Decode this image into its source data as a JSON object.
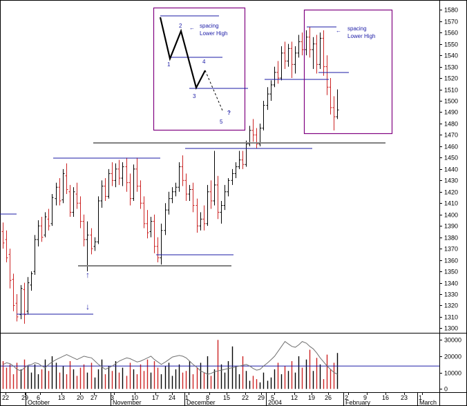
{
  "chart_data": [
    {
      "type": "ohlc",
      "title": "",
      "price_axis": {
        "ticks": [
          1300,
          1310,
          1320,
          1330,
          1340,
          1350,
          1360,
          1370,
          1380,
          1390,
          1400,
          1410,
          1420,
          1430,
          1440,
          1450,
          1460,
          1470,
          1480,
          1490,
          1500,
          1510,
          1520,
          1530,
          1540,
          1550,
          1560,
          1570,
          1580
        ],
        "ylim": [
          1296,
          1585
        ]
      },
      "date_axis": {
        "day_ticks": [
          "22",
          "29",
          "6",
          "13",
          "20",
          "27",
          "3",
          "10",
          "17",
          "24",
          "1",
          "8",
          "15",
          "22",
          "29",
          "5",
          "12",
          "19",
          "26",
          "2",
          "9",
          "16",
          "23",
          "1"
        ],
        "month_labels": [
          "October",
          "November",
          "December",
          "2004",
          "February",
          "March"
        ]
      },
      "colors": {
        "up": "#000000",
        "down": "#cc2222",
        "trendline": "#1a1aa6",
        "support": "#808080",
        "box": "#800080"
      },
      "bars": [
        {
          "o": 1385,
          "h": 1393,
          "c": 1375,
          "l": 1370
        },
        {
          "o": 1378,
          "h": 1386,
          "c": 1362,
          "l": 1358
        },
        {
          "o": 1365,
          "h": 1370,
          "c": 1342,
          "l": 1335
        },
        {
          "o": 1343,
          "h": 1348,
          "c": 1320,
          "l": 1315
        },
        {
          "o": 1322,
          "h": 1330,
          "c": 1310,
          "l": 1306
        },
        {
          "o": 1312,
          "h": 1338,
          "c": 1335,
          "l": 1308
        },
        {
          "o": 1334,
          "h": 1340,
          "c": 1312,
          "l": 1304
        },
        {
          "o": 1315,
          "h": 1345,
          "c": 1340,
          "l": 1312
        },
        {
          "o": 1338,
          "h": 1350,
          "c": 1348,
          "l": 1333
        },
        {
          "o": 1350,
          "h": 1382,
          "c": 1378,
          "l": 1347
        },
        {
          "o": 1378,
          "h": 1395,
          "c": 1390,
          "l": 1372
        },
        {
          "o": 1390,
          "h": 1398,
          "c": 1380,
          "l": 1376
        },
        {
          "o": 1382,
          "h": 1402,
          "c": 1398,
          "l": 1380
        },
        {
          "o": 1396,
          "h": 1405,
          "c": 1390,
          "l": 1386
        },
        {
          "o": 1392,
          "h": 1418,
          "c": 1415,
          "l": 1390
        },
        {
          "o": 1414,
          "h": 1428,
          "c": 1424,
          "l": 1408
        },
        {
          "o": 1424,
          "h": 1432,
          "c": 1412,
          "l": 1408
        },
        {
          "o": 1413,
          "h": 1440,
          "c": 1436,
          "l": 1410
        },
        {
          "o": 1434,
          "h": 1445,
          "c": 1422,
          "l": 1418
        },
        {
          "o": 1420,
          "h": 1426,
          "c": 1402,
          "l": 1398
        },
        {
          "o": 1402,
          "h": 1424,
          "c": 1420,
          "l": 1398
        },
        {
          "o": 1418,
          "h": 1428,
          "c": 1410,
          "l": 1405
        },
        {
          "o": 1410,
          "h": 1416,
          "c": 1394,
          "l": 1388
        },
        {
          "o": 1394,
          "h": 1400,
          "c": 1378,
          "l": 1372
        },
        {
          "o": 1378,
          "h": 1394,
          "c": 1382,
          "l": 1350
        },
        {
          "o": 1382,
          "h": 1388,
          "c": 1370,
          "l": 1365
        },
        {
          "o": 1372,
          "h": 1380,
          "c": 1376,
          "l": 1368
        },
        {
          "o": 1376,
          "h": 1416,
          "c": 1412,
          "l": 1374
        },
        {
          "o": 1412,
          "h": 1430,
          "c": 1425,
          "l": 1406
        },
        {
          "o": 1425,
          "h": 1432,
          "c": 1416,
          "l": 1412
        },
        {
          "o": 1416,
          "h": 1440,
          "c": 1436,
          "l": 1414
        },
        {
          "o": 1436,
          "h": 1446,
          "c": 1430,
          "l": 1425
        },
        {
          "o": 1430,
          "h": 1445,
          "c": 1440,
          "l": 1424
        },
        {
          "o": 1440,
          "h": 1448,
          "c": 1432,
          "l": 1426
        },
        {
          "o": 1432,
          "h": 1446,
          "c": 1442,
          "l": 1425
        },
        {
          "o": 1442,
          "h": 1450,
          "c": 1428,
          "l": 1420
        },
        {
          "o": 1428,
          "h": 1436,
          "c": 1414,
          "l": 1408
        },
        {
          "o": 1414,
          "h": 1444,
          "c": 1440,
          "l": 1412
        },
        {
          "o": 1440,
          "h": 1450,
          "c": 1425,
          "l": 1420
        },
        {
          "o": 1425,
          "h": 1430,
          "c": 1410,
          "l": 1405
        },
        {
          "o": 1410,
          "h": 1416,
          "c": 1392,
          "l": 1388
        },
        {
          "o": 1392,
          "h": 1404,
          "c": 1384,
          "l": 1379
        },
        {
          "o": 1385,
          "h": 1398,
          "c": 1394,
          "l": 1380
        },
        {
          "o": 1394,
          "h": 1400,
          "c": 1372,
          "l": 1366
        },
        {
          "o": 1372,
          "h": 1380,
          "c": 1362,
          "l": 1358
        },
        {
          "o": 1362,
          "h": 1392,
          "c": 1386,
          "l": 1356
        },
        {
          "o": 1386,
          "h": 1410,
          "c": 1404,
          "l": 1382
        },
        {
          "o": 1404,
          "h": 1420,
          "c": 1414,
          "l": 1400
        },
        {
          "o": 1414,
          "h": 1424,
          "c": 1420,
          "l": 1410
        },
        {
          "o": 1420,
          "h": 1428,
          "c": 1424,
          "l": 1416
        },
        {
          "o": 1424,
          "h": 1446,
          "c": 1442,
          "l": 1420
        },
        {
          "o": 1442,
          "h": 1452,
          "c": 1430,
          "l": 1425
        },
        {
          "o": 1430,
          "h": 1436,
          "c": 1418,
          "l": 1412
        },
        {
          "o": 1418,
          "h": 1426,
          "c": 1422,
          "l": 1412
        },
        {
          "o": 1422,
          "h": 1428,
          "c": 1408,
          "l": 1402
        },
        {
          "o": 1408,
          "h": 1414,
          "c": 1390,
          "l": 1384
        },
        {
          "o": 1390,
          "h": 1402,
          "c": 1396,
          "l": 1386
        },
        {
          "o": 1396,
          "h": 1408,
          "c": 1392,
          "l": 1386
        },
        {
          "o": 1392,
          "h": 1426,
          "c": 1420,
          "l": 1390
        },
        {
          "o": 1420,
          "h": 1430,
          "c": 1412,
          "l": 1405
        },
        {
          "o": 1412,
          "h": 1456,
          "c": 1426,
          "l": 1408
        },
        {
          "o": 1426,
          "h": 1434,
          "c": 1402,
          "l": 1396
        },
        {
          "o": 1402,
          "h": 1412,
          "c": 1408,
          "l": 1392
        },
        {
          "o": 1408,
          "h": 1426,
          "c": 1420,
          "l": 1404
        },
        {
          "o": 1420,
          "h": 1432,
          "c": 1430,
          "l": 1416
        },
        {
          "o": 1430,
          "h": 1440,
          "c": 1436,
          "l": 1426
        },
        {
          "o": 1436,
          "h": 1446,
          "c": 1442,
          "l": 1432
        },
        {
          "o": 1442,
          "h": 1456,
          "c": 1448,
          "l": 1440
        },
        {
          "o": 1448,
          "h": 1456,
          "c": 1444,
          "l": 1440
        },
        {
          "o": 1444,
          "h": 1465,
          "c": 1462,
          "l": 1442
        },
        {
          "o": 1462,
          "h": 1478,
          "c": 1474,
          "l": 1460
        },
        {
          "o": 1474,
          "h": 1484,
          "c": 1470,
          "l": 1464
        },
        {
          "o": 1470,
          "h": 1476,
          "c": 1462,
          "l": 1458
        },
        {
          "o": 1462,
          "h": 1480,
          "c": 1476,
          "l": 1460
        },
        {
          "o": 1476,
          "h": 1500,
          "c": 1496,
          "l": 1474
        },
        {
          "o": 1496,
          "h": 1512,
          "c": 1506,
          "l": 1492
        },
        {
          "o": 1506,
          "h": 1518,
          "c": 1514,
          "l": 1500
        },
        {
          "o": 1514,
          "h": 1530,
          "c": 1525,
          "l": 1512
        },
        {
          "o": 1525,
          "h": 1535,
          "c": 1520,
          "l": 1515
        },
        {
          "o": 1520,
          "h": 1548,
          "c": 1542,
          "l": 1518
        },
        {
          "o": 1542,
          "h": 1552,
          "c": 1535,
          "l": 1528
        },
        {
          "o": 1535,
          "h": 1550,
          "c": 1546,
          "l": 1530
        },
        {
          "o": 1546,
          "h": 1552,
          "c": 1532,
          "l": 1520
        },
        {
          "o": 1532,
          "h": 1548,
          "c": 1542,
          "l": 1524
        },
        {
          "o": 1542,
          "h": 1558,
          "c": 1552,
          "l": 1538
        },
        {
          "o": 1552,
          "h": 1560,
          "c": 1545,
          "l": 1540
        },
        {
          "o": 1545,
          "h": 1562,
          "c": 1556,
          "l": 1540
        },
        {
          "o": 1556,
          "h": 1565,
          "c": 1545,
          "l": 1538
        },
        {
          "o": 1545,
          "h": 1556,
          "c": 1550,
          "l": 1528
        },
        {
          "o": 1550,
          "h": 1558,
          "c": 1532,
          "l": 1524
        },
        {
          "o": 1532,
          "h": 1560,
          "c": 1555,
          "l": 1528
        },
        {
          "o": 1555,
          "h": 1562,
          "c": 1530,
          "l": 1522
        },
        {
          "o": 1530,
          "h": 1540,
          "c": 1512,
          "l": 1505
        },
        {
          "o": 1512,
          "h": 1520,
          "c": 1494,
          "l": 1488
        },
        {
          "o": 1494,
          "h": 1504,
          "c": 1486,
          "l": 1474
        },
        {
          "o": 1486,
          "h": 1510,
          "c": 1492,
          "l": 1484
        }
      ],
      "annotations": {
        "diagram_labels": [
          "1",
          "2",
          "3",
          "4",
          "5",
          "?"
        ],
        "text_left": "spacing\nLower High",
        "text_right": "spacing\nLower High",
        "arrow_glyph_left": "←",
        "arrow_glyph_right": "←",
        "arrow_up": "↑",
        "arrow_down": "↓"
      }
    },
    {
      "type": "bar",
      "title": "",
      "volume_axis": {
        "ticks": [
          0,
          10000,
          20000,
          30000
        ],
        "ylim": [
          -2000,
          33500
        ]
      },
      "reference_line": 14000,
      "volume": [
        17000,
        13000,
        15000,
        9000,
        16000,
        12000,
        18000,
        14000,
        10000,
        15000,
        9000,
        12000,
        18000,
        11000,
        20000,
        16000,
        10000,
        14000,
        9000,
        17000,
        12000,
        8000,
        13000,
        15000,
        10000,
        16000,
        7000,
        12000,
        18000,
        9000,
        14000,
        11000,
        17000,
        10000,
        13000,
        8000,
        16000,
        12000,
        9000,
        15000,
        11000,
        18000,
        10000,
        17000,
        13000,
        9000,
        14000,
        16000,
        8000,
        12000,
        15000,
        10000,
        11000,
        17000,
        9000,
        13000,
        16000,
        10000,
        20000,
        8000,
        12000,
        30000,
        15000,
        10000,
        17000,
        26000,
        14000,
        9000,
        20000,
        11000,
        5000,
        8000,
        6000,
        4000,
        10000,
        5000,
        7000,
        12000,
        16000,
        9000,
        14000,
        11000,
        17000,
        10000,
        20000,
        13000,
        18000,
        24000,
        11000,
        19000,
        15000,
        6000,
        21000,
        12000,
        16000,
        22000
      ],
      "oscillator": [
        15000,
        16000,
        15500,
        14000,
        12000,
        11000,
        13000,
        14500,
        15000,
        16000,
        15500,
        14000,
        13000,
        15000,
        16500,
        18000,
        19000,
        20000,
        21000,
        20000,
        19000,
        18000,
        19000,
        20000,
        19500,
        19000,
        17000,
        15000,
        13500,
        12000,
        13000,
        14000,
        15500,
        17000,
        18000,
        19000,
        18500,
        17500,
        16500,
        17000,
        18000,
        19000,
        20000,
        18000,
        16500,
        15000,
        16500,
        18000,
        19500,
        20000,
        20500,
        20000,
        19000,
        17000,
        15000,
        13000,
        11000,
        10000,
        9000,
        9500,
        10500,
        11000,
        11500,
        12000,
        12500,
        13000,
        13500,
        14000,
        14500,
        15000,
        14000,
        12500,
        11500,
        12000,
        14000,
        16000,
        18000,
        20000,
        23000,
        26000,
        29000,
        27500,
        26000,
        25500,
        27000,
        29000,
        28000,
        26000,
        24500,
        22000,
        19000,
        16500,
        14000,
        12000,
        10000,
        9000
      ]
    }
  ]
}
